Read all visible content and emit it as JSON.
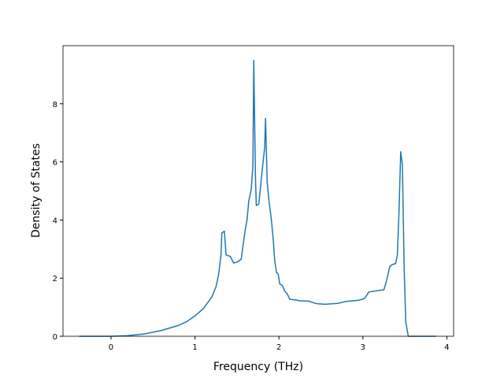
{
  "chart_data": {
    "type": "line",
    "xlabel": "Frequency (THz)",
    "ylabel": "Density of States",
    "x": [
      -0.38,
      0,
      0.2,
      0.4,
      0.6,
      0.8,
      0.9,
      1.0,
      1.1,
      1.2,
      1.25,
      1.28,
      1.31,
      1.32,
      1.35,
      1.37,
      1.42,
      1.46,
      1.5,
      1.55,
      1.6,
      1.62,
      1.64,
      1.67,
      1.69,
      1.7,
      1.72,
      1.73,
      1.76,
      1.8,
      1.83,
      1.84,
      1.86,
      1.88,
      1.91,
      1.93,
      1.95,
      1.97,
      1.99,
      2.01,
      2.04,
      2.07,
      2.1,
      2.13,
      2.2,
      2.25,
      2.35,
      2.45,
      2.55,
      2.7,
      2.8,
      2.95,
      3.02,
      3.07,
      3.15,
      3.25,
      3.28,
      3.32,
      3.35,
      3.39,
      3.41,
      3.43,
      3.45,
      3.47,
      3.49,
      3.51,
      3.54,
      3.87
    ],
    "series": [
      {
        "color": "#1f77b4",
        "values": [
          0,
          0,
          0.02,
          0.08,
          0.2,
          0.37,
          0.5,
          0.7,
          0.95,
          1.35,
          1.7,
          2.1,
          2.8,
          3.55,
          3.62,
          2.8,
          2.75,
          2.52,
          2.55,
          2.65,
          3.7,
          4.0,
          4.65,
          5.05,
          5.9,
          9.5,
          5.5,
          4.5,
          4.55,
          5.7,
          6.5,
          7.5,
          5.3,
          4.7,
          4.0,
          3.4,
          2.6,
          2.2,
          2.15,
          1.8,
          1.75,
          1.55,
          1.45,
          1.27,
          1.25,
          1.22,
          1.21,
          1.12,
          1.1,
          1.13,
          1.2,
          1.24,
          1.3,
          1.52,
          1.56,
          1.6,
          1.9,
          2.4,
          2.47,
          2.5,
          2.8,
          4.3,
          6.35,
          5.9,
          2.5,
          0.5,
          0,
          0
        ]
      }
    ],
    "xlim": [
      -0.572,
      4.08
    ],
    "ylim": [
      0,
      10
    ],
    "xticks": [
      0,
      1,
      2,
      3,
      4
    ],
    "yticks": [
      0,
      2,
      4,
      6,
      8
    ]
  }
}
